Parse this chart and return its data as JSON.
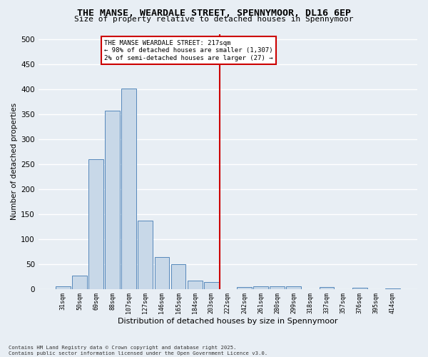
{
  "title": "THE MANSE, WEARDALE STREET, SPENNYMOOR, DL16 6EP",
  "subtitle": "Size of property relative to detached houses in Spennymoor",
  "xlabel": "Distribution of detached houses by size in Spennymoor",
  "ylabel": "Number of detached properties",
  "categories": [
    "31sqm",
    "50sqm",
    "69sqm",
    "88sqm",
    "107sqm",
    "127sqm",
    "146sqm",
    "165sqm",
    "184sqm",
    "203sqm",
    "222sqm",
    "242sqm",
    "261sqm",
    "280sqm",
    "299sqm",
    "318sqm",
    "337sqm",
    "357sqm",
    "376sqm",
    "395sqm",
    "414sqm"
  ],
  "values": [
    5,
    26,
    259,
    356,
    401,
    136,
    63,
    49,
    17,
    14,
    0,
    4,
    5,
    5,
    5,
    0,
    4,
    0,
    2,
    0,
    1
  ],
  "bar_color": "#c8d8e8",
  "bar_edge_color": "#5588bb",
  "annotation_text_line1": "THE MANSE WEARDALE STREET: 217sqm",
  "annotation_text_line2": "← 98% of detached houses are smaller (1,307)",
  "annotation_text_line3": "2% of semi-detached houses are larger (27) →",
  "annotation_box_color": "#ffffff",
  "annotation_box_edge": "#cc0000",
  "vline_color": "#cc0000",
  "ylim": [
    0,
    510
  ],
  "yticks": [
    0,
    50,
    100,
    150,
    200,
    250,
    300,
    350,
    400,
    450,
    500
  ],
  "background_color": "#e8eef4",
  "grid_color": "#ffffff",
  "footer_line1": "Contains HM Land Registry data © Crown copyright and database right 2025.",
  "footer_line2": "Contains public sector information licensed under the Open Government Licence v3.0."
}
